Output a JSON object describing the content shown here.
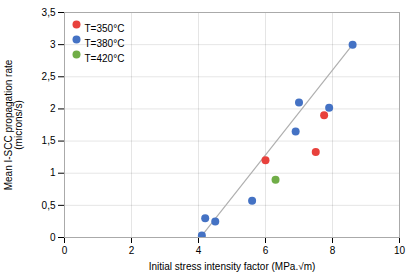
{
  "chart_data": {
    "type": "scatter",
    "xlabel": "Initial stress intensity factor (MPa.√m)",
    "ylabel": "Mean I-SCC propagation rate\n(microns/s)",
    "series": [
      {
        "name": "T=350°C",
        "color": "#e8413c",
        "marker": "circle",
        "x": [
          6.0,
          7.5,
          7.75
        ],
        "values": [
          1.2,
          1.33,
          1.9
        ]
      },
      {
        "name": "T=380°C",
        "color": "#4472c4",
        "marker": "circle",
        "x": [
          4.1,
          4.2,
          4.5,
          5.6,
          6.9,
          7.0,
          7.9,
          8.6
        ],
        "values": [
          0.03,
          0.3,
          0.25,
          0.57,
          1.65,
          2.1,
          2.02,
          3.0
        ]
      },
      {
        "name": "T=420°C",
        "color": "#70ad47",
        "marker": "circle",
        "x": [
          6.3
        ],
        "values": [
          0.9
        ]
      }
    ],
    "trendline": {
      "type": "line",
      "color": "#b0b0b0",
      "line_style": "solid",
      "x": [
        4.1,
        8.6
      ],
      "values": [
        0.03,
        3.0
      ]
    },
    "xlim": [
      0,
      10
    ],
    "ylim": [
      0,
      3.5
    ],
    "xticks": [
      0,
      2,
      4,
      6,
      8,
      10
    ],
    "yticks": [
      0,
      {
        "value": 0.5,
        "label": "0,5"
      },
      1,
      {
        "value": 1.5,
        "label": "1,5"
      },
      2,
      {
        "value": 2.5,
        "label": "2,5"
      },
      3,
      {
        "value": 3.5,
        "label": "3,5"
      }
    ],
    "grid": true,
    "legend": "upper left"
  }
}
